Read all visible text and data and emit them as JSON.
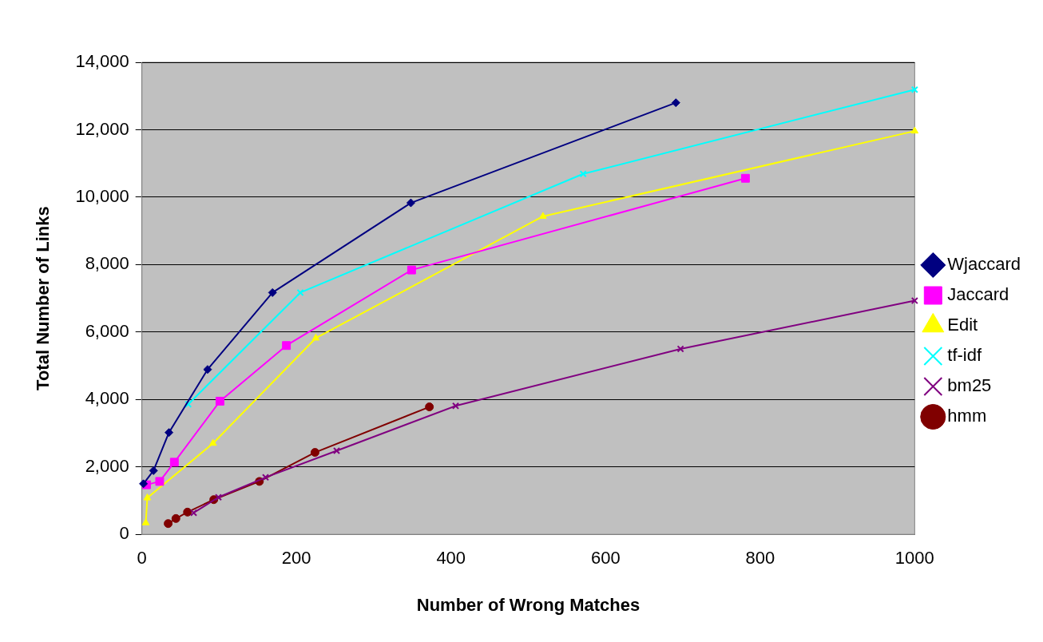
{
  "chart_data": {
    "type": "line",
    "xlabel": "Number of Wrong Matches",
    "ylabel": "Total Number of Links",
    "xlim": [
      0,
      1000
    ],
    "xticks": [
      0,
      200,
      400,
      600,
      800,
      1000
    ],
    "ylim": [
      0,
      14000
    ],
    "yticks": [
      0,
      {
        "value": 2000,
        "label": "2,000"
      },
      {
        "value": 4000,
        "label": "4,000"
      },
      {
        "value": 6000,
        "label": "6,000"
      },
      {
        "value": 8000,
        "label": "8,000"
      },
      {
        "value": 10000,
        "label": "10,000"
      },
      {
        "value": 12000,
        "label": "12,000"
      },
      {
        "value": 14000,
        "label": "14,000"
      }
    ],
    "grid": "y",
    "legend": "right",
    "line_style": "solid",
    "series": [
      {
        "name": "Wjaccard",
        "color": "#000080",
        "marker": "diamond",
        "x": [
          2,
          15,
          35,
          85,
          169,
          348,
          691
        ],
        "values": [
          1500,
          1890,
          3020,
          4890,
          7170,
          9830,
          12800
        ]
      },
      {
        "name": "Jaccard",
        "color": "#ff00ff",
        "marker": "square",
        "x": [
          6,
          23,
          42,
          101,
          187,
          349,
          781
        ],
        "values": [
          1470,
          1570,
          2140,
          3950,
          5600,
          7840,
          10560
        ]
      },
      {
        "name": "Edit",
        "color": "#ffff00",
        "marker": "triangle",
        "x": [
          5,
          7,
          92,
          225,
          519,
          1000
        ],
        "values": [
          340,
          1080,
          2700,
          5820,
          9430,
          11960
        ]
      },
      {
        "name": "tf-idf",
        "color": "#00ffff",
        "marker": "cross",
        "x": [
          60,
          205,
          571,
          1000
        ],
        "values": [
          3860,
          7170,
          10690,
          13190
        ]
      },
      {
        "name": "bm25",
        "color": "#800080",
        "marker": "cross",
        "x": [
          67,
          99,
          160,
          252,
          406,
          697,
          1000
        ],
        "values": [
          640,
          1100,
          1690,
          2480,
          3810,
          5500,
          6930
        ]
      },
      {
        "name": "hmm",
        "color": "#800000",
        "marker": "circle",
        "x": [
          34,
          44,
          59,
          93,
          152,
          224,
          372
        ],
        "values": [
          320,
          470,
          660,
          1030,
          1570,
          2430,
          3780
        ]
      }
    ]
  }
}
